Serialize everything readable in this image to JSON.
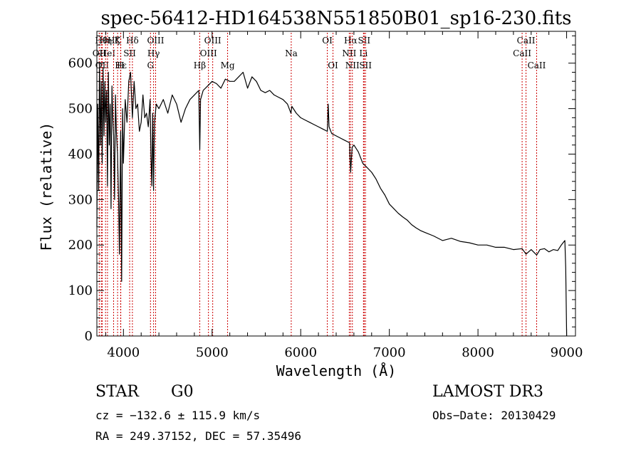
{
  "chart_data": {
    "type": "line",
    "title": "spec-56412-HD164538N551850B01_sp16-230.fits",
    "xlabel": "Wavelength (Å)",
    "ylabel": "Flux (relative)",
    "xlim": [
      3700,
      9100
    ],
    "ylim": [
      0,
      670
    ],
    "x_ticks": [
      4000,
      5000,
      6000,
      7000,
      8000,
      9000
    ],
    "x_tick_labels": [
      "4000",
      "5000",
      "6000",
      "7000",
      "8000",
      "9000"
    ],
    "y_ticks": [
      0,
      100,
      200,
      300,
      400,
      500,
      600
    ],
    "y_tick_labels": [
      "0",
      "100",
      "200",
      "300",
      "400",
      "500",
      "600"
    ],
    "series": [
      {
        "name": "flux",
        "x": [
          3700,
          3710,
          3720,
          3730,
          3740,
          3750,
          3760,
          3770,
          3780,
          3790,
          3800,
          3810,
          3820,
          3830,
          3840,
          3850,
          3860,
          3870,
          3880,
          3890,
          3900,
          3910,
          3920,
          3933,
          3945,
          3955,
          3968,
          3980,
          3990,
          4000,
          4020,
          4040,
          4060,
          4080,
          4101,
          4120,
          4140,
          4160,
          4180,
          4200,
          4220,
          4240,
          4260,
          4280,
          4300,
          4310,
          4320,
          4330,
          4340,
          4350,
          4370,
          4400,
          4450,
          4500,
          4550,
          4600,
          4650,
          4700,
          4750,
          4800,
          4850,
          4861,
          4870,
          4900,
          4950,
          5000,
          5050,
          5100,
          5150,
          5200,
          5250,
          5300,
          5350,
          5400,
          5450,
          5500,
          5550,
          5600,
          5650,
          5700,
          5750,
          5800,
          5850,
          5890,
          5900,
          5950,
          6000,
          6050,
          6100,
          6150,
          6200,
          6250,
          6300,
          6310,
          6320,
          6350,
          6400,
          6450,
          6500,
          6550,
          6563,
          6580,
          6600,
          6650,
          6700,
          6750,
          6800,
          6850,
          6900,
          6950,
          7000,
          7050,
          7100,
          7150,
          7200,
          7250,
          7300,
          7350,
          7400,
          7500,
          7600,
          7700,
          7800,
          7900,
          8000,
          8100,
          8200,
          8300,
          8400,
          8498,
          8542,
          8600,
          8662,
          8700,
          8750,
          8800,
          8850,
          8900,
          8940,
          8960,
          8980,
          8990,
          9000
        ],
        "values": [
          240,
          510,
          320,
          600,
          420,
          560,
          380,
          590,
          440,
          560,
          470,
          540,
          330,
          580,
          420,
          510,
          280,
          550,
          480,
          440,
          300,
          530,
          450,
          400,
          300,
          180,
          450,
          120,
          500,
          380,
          520,
          470,
          560,
          580,
          480,
          560,
          500,
          510,
          450,
          470,
          530,
          480,
          490,
          460,
          520,
          400,
          330,
          490,
          320,
          470,
          510,
          500,
          520,
          490,
          530,
          510,
          470,
          500,
          520,
          530,
          540,
          410,
          520,
          540,
          550,
          560,
          555,
          545,
          565,
          560,
          560,
          570,
          580,
          545,
          570,
          560,
          540,
          535,
          540,
          530,
          525,
          520,
          510,
          490,
          505,
          490,
          480,
          475,
          470,
          465,
          460,
          455,
          450,
          510,
          460,
          445,
          440,
          435,
          430,
          425,
          360,
          415,
          420,
          405,
          380,
          370,
          360,
          345,
          325,
          310,
          290,
          280,
          270,
          262,
          255,
          245,
          238,
          232,
          228,
          220,
          210,
          215,
          208,
          205,
          200,
          200,
          195,
          195,
          190,
          192,
          180,
          190,
          178,
          190,
          192,
          185,
          190,
          188,
          200,
          205,
          210,
          150,
          0
        ]
      }
    ],
    "line_identifications": [
      {
        "label": "OII",
        "wavelength": 3727,
        "row": 2
      },
      {
        "label": "Hθ",
        "wavelength": 3750,
        "row": 1
      },
      {
        "label": "OII",
        "wavelength": 3760,
        "row": 3
      },
      {
        "label": "Hη",
        "wavelength": 3798,
        "row": 1
      },
      {
        "label": "HeI",
        "wavelength": 3820,
        "row": 2
      },
      {
        "label": "Hζ",
        "wavelength": 3889,
        "row": 1
      },
      {
        "label": "K",
        "wavelength": 3934,
        "row": 1
      },
      {
        "label": "Hε",
        "wavelength": 3970,
        "row": 3
      },
      {
        "label": "H",
        "wavelength": 3968,
        "row": 3
      },
      {
        "label": "SII",
        "wavelength": 4070,
        "row": 2
      },
      {
        "label": "Hδ",
        "wavelength": 4101,
        "row": 1
      },
      {
        "label": "OIII",
        "wavelength": 4363,
        "row": 1
      },
      {
        "label": "Hγ",
        "wavelength": 4340,
        "row": 2
      },
      {
        "label": "G",
        "wavelength": 4305,
        "row": 3
      },
      {
        "label": "Hβ",
        "wavelength": 4861,
        "row": 3
      },
      {
        "label": "OIII",
        "wavelength": 5007,
        "row": 1
      },
      {
        "label": "OIII",
        "wavelength": 4959,
        "row": 2
      },
      {
        "label": "Mg",
        "wavelength": 5175,
        "row": 3
      },
      {
        "label": "Na",
        "wavelength": 5893,
        "row": 2
      },
      {
        "label": "OI",
        "wavelength": 6300,
        "row": 1
      },
      {
        "label": "OI",
        "wavelength": 6364,
        "row": 3
      },
      {
        "label": "Hα",
        "wavelength": 6563,
        "row": 1
      },
      {
        "label": "NII",
        "wavelength": 6548,
        "row": 2
      },
      {
        "label": "NII",
        "wavelength": 6583,
        "row": 3
      },
      {
        "label": "SII",
        "wavelength": 6716,
        "row": 1
      },
      {
        "label": "Li",
        "wavelength": 6708,
        "row": 2
      },
      {
        "label": "SII",
        "wavelength": 6731,
        "row": 3
      },
      {
        "label": "CaII",
        "wavelength": 8542,
        "row": 1
      },
      {
        "label": "CaII",
        "wavelength": 8498,
        "row": 2
      },
      {
        "label": "CaII",
        "wavelength": 8662,
        "row": 3
      }
    ]
  },
  "info": {
    "object_class": "STAR",
    "subclass": "G0",
    "survey": "LAMOST DR3",
    "cz": "cz = −132.6 ± 115.9 km/s",
    "obs_date": "Obs−Date: 20130429",
    "coords": "RA = 249.37152, DEC =  57.35496"
  },
  "colors": {
    "line": "#000000",
    "marker": "#cc0000",
    "background": "#ffffff"
  }
}
